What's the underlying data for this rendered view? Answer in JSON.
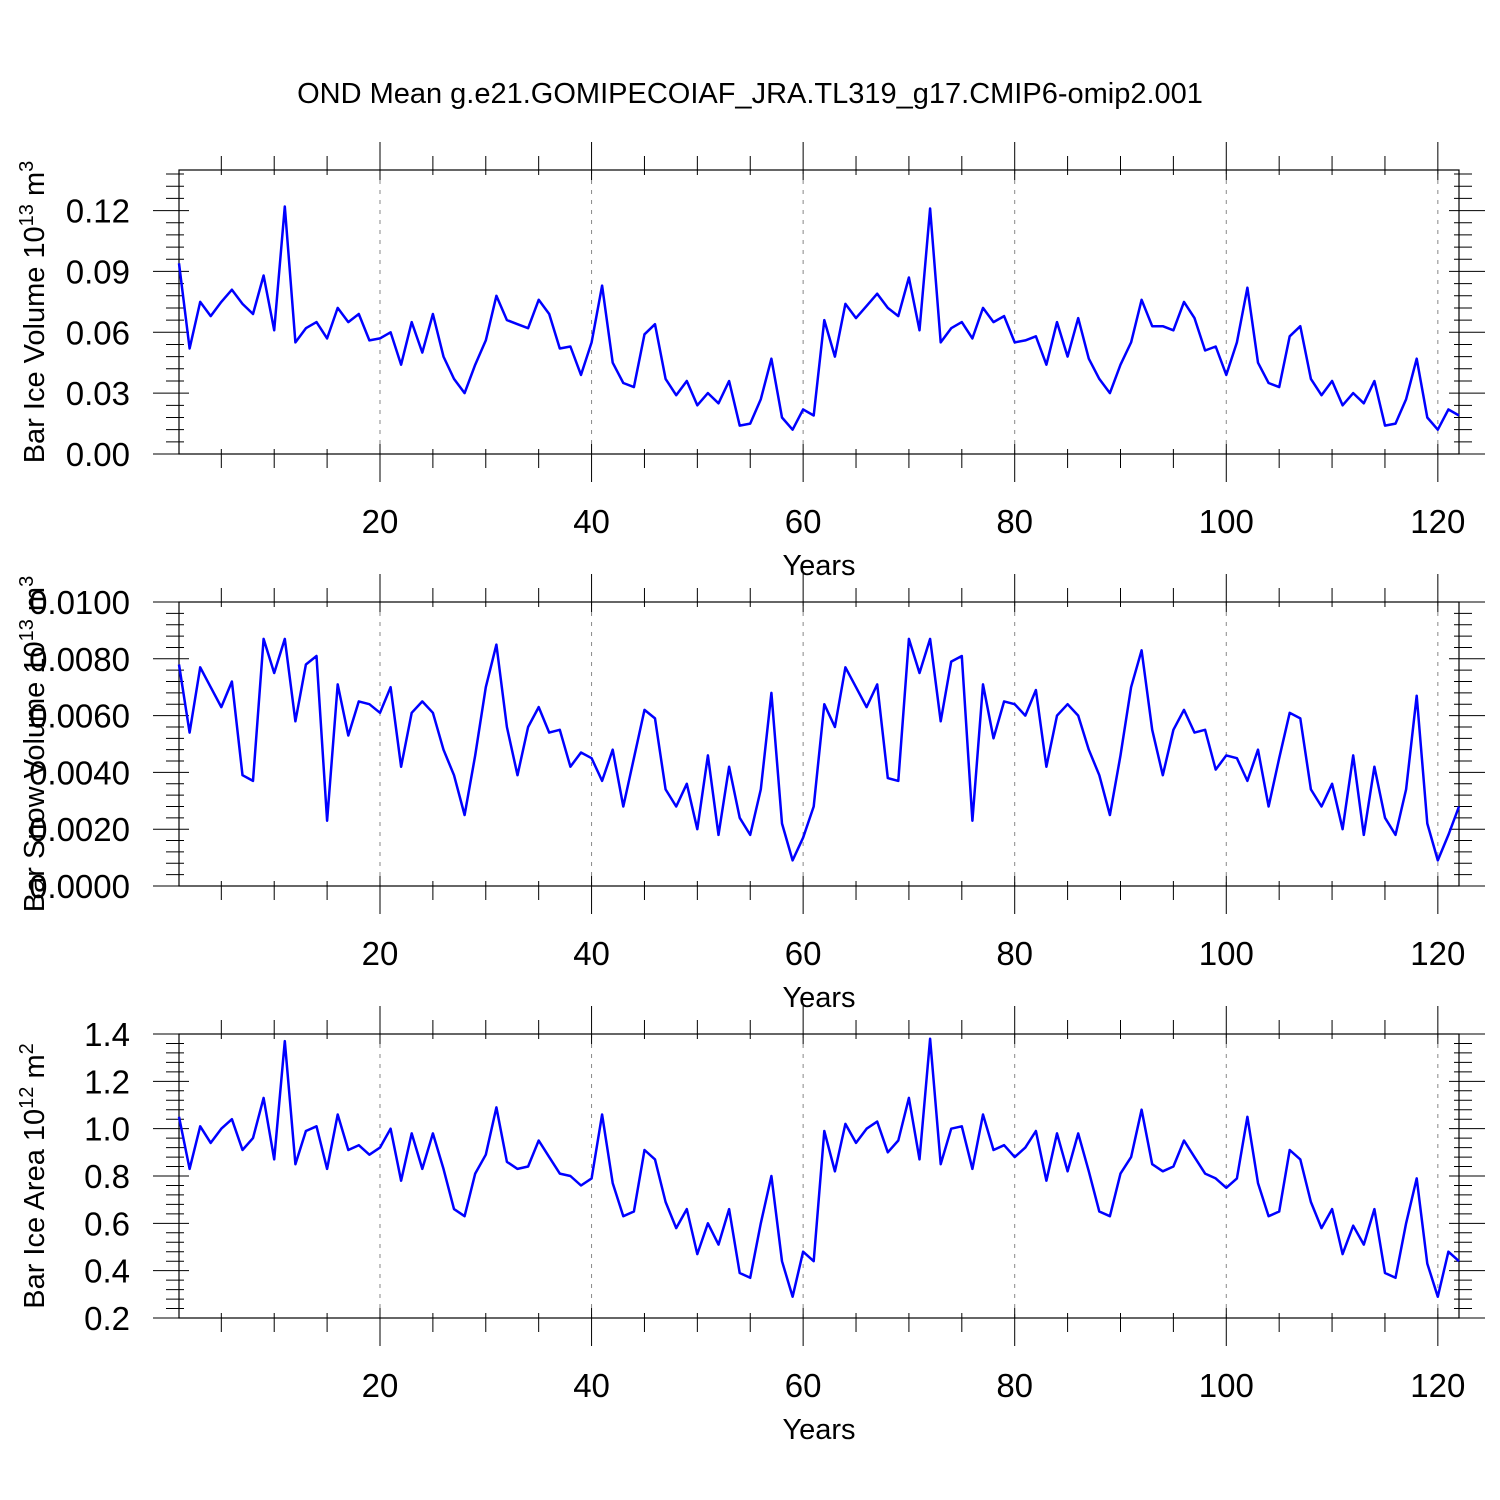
{
  "title": "OND Mean g.e21.GOMIPECOIAF_JRA.TL319_g17.CMIP6-omip2.001",
  "chart_data": [
    {
      "type": "line",
      "ylabel": "Bar Ice Volume",
      "ylabel_unit": "10",
      "ylabel_exp": "13",
      "ylabel_unit2": " m",
      "ylabel_exp2": "3",
      "xlabel": "Years",
      "xlim": [
        1,
        122
      ],
      "ylim": [
        0,
        0.14
      ],
      "xticks": [
        20,
        40,
        60,
        80,
        100,
        120
      ],
      "yticks": [
        "0.00",
        "0.03",
        "0.06",
        "0.09",
        "0.12"
      ],
      "grid_x": true,
      "line_color": "#0000ff",
      "x": [
        1,
        2,
        3,
        4,
        5,
        6,
        7,
        8,
        9,
        10,
        11,
        12,
        13,
        14,
        15,
        16,
        17,
        18,
        19,
        20,
        21,
        22,
        23,
        24,
        25,
        26,
        27,
        28,
        29,
        30,
        31,
        32,
        33,
        34,
        35,
        36,
        37,
        38,
        39,
        40,
        41,
        42,
        43,
        44,
        45,
        46,
        47,
        48,
        49,
        50,
        51,
        52,
        53,
        54,
        55,
        56,
        57,
        58,
        59,
        60,
        61,
        62,
        63,
        64,
        65,
        66,
        67,
        68,
        69,
        70,
        71,
        72,
        73,
        74,
        75,
        76,
        77,
        78,
        79,
        80,
        81,
        82,
        83,
        84,
        85,
        86,
        87,
        88,
        89,
        90,
        91,
        92,
        93,
        94,
        95,
        96,
        97,
        98,
        99,
        100,
        101,
        102,
        103,
        104,
        105,
        106,
        107,
        108,
        109,
        110,
        111,
        112,
        113,
        114,
        115,
        116,
        117,
        118,
        119,
        120,
        121,
        122
      ],
      "values": [
        0.094,
        0.052,
        0.075,
        0.068,
        0.075,
        0.081,
        0.074,
        0.069,
        0.088,
        0.061,
        0.122,
        0.055,
        0.062,
        0.065,
        0.057,
        0.072,
        0.065,
        0.069,
        0.056,
        0.057,
        0.06,
        0.044,
        0.065,
        0.05,
        0.069,
        0.048,
        0.037,
        0.03,
        0.044,
        0.056,
        0.078,
        0.066,
        0.064,
        0.062,
        0.076,
        0.069,
        0.052,
        0.053,
        0.039,
        0.055,
        0.083,
        0.045,
        0.035,
        0.033,
        0.059,
        0.064,
        0.037,
        0.029,
        0.036,
        0.024,
        0.03,
        0.025,
        0.036,
        0.014,
        0.015,
        0.027,
        0.047,
        0.018,
        0.012,
        0.022,
        0.019,
        0.066,
        0.048,
        0.074,
        0.067,
        0.073,
        0.079,
        0.072,
        0.068,
        0.087,
        0.061,
        0.121,
        0.055,
        0.062,
        0.065,
        0.057,
        0.072,
        0.065,
        0.068,
        0.055,
        0.056,
        0.058,
        0.044,
        0.065,
        0.048,
        0.067,
        0.047,
        0.037,
        0.03,
        0.044,
        0.055,
        0.076,
        0.063,
        0.063,
        0.061,
        0.075,
        0.067,
        0.051,
        0.053,
        0.039,
        0.055,
        0.082,
        0.045,
        0.035,
        0.033,
        0.058,
        0.063,
        0.037,
        0.029,
        0.036,
        0.024,
        0.03,
        0.025,
        0.036,
        0.014,
        0.015,
        0.027,
        0.047,
        0.018,
        0.012,
        0.022,
        0.019
      ]
    },
    {
      "type": "line",
      "ylabel": "Bar Snow Volume",
      "ylabel_unit": "10",
      "ylabel_exp": "13",
      "ylabel_unit2": " m",
      "ylabel_exp2": "3",
      "xlabel": "Years",
      "xlim": [
        1,
        122
      ],
      "ylim": [
        0,
        0.01
      ],
      "xticks": [
        20,
        40,
        60,
        80,
        100,
        120
      ],
      "yticks": [
        "0.0000",
        "0.0020",
        "0.0040",
        "0.0060",
        "0.0080",
        "0.0100"
      ],
      "grid_x": true,
      "line_color": "#0000ff",
      "x": [
        1,
        2,
        3,
        4,
        5,
        6,
        7,
        8,
        9,
        10,
        11,
        12,
        13,
        14,
        15,
        16,
        17,
        18,
        19,
        20,
        21,
        22,
        23,
        24,
        25,
        26,
        27,
        28,
        29,
        30,
        31,
        32,
        33,
        34,
        35,
        36,
        37,
        38,
        39,
        40,
        41,
        42,
        43,
        44,
        45,
        46,
        47,
        48,
        49,
        50,
        51,
        52,
        53,
        54,
        55,
        56,
        57,
        58,
        59,
        60,
        61,
        62,
        63,
        64,
        65,
        66,
        67,
        68,
        69,
        70,
        71,
        72,
        73,
        74,
        75,
        76,
        77,
        78,
        79,
        80,
        81,
        82,
        83,
        84,
        85,
        86,
        87,
        88,
        89,
        90,
        91,
        92,
        93,
        94,
        95,
        96,
        97,
        98,
        99,
        100,
        101,
        102,
        103,
        104,
        105,
        106,
        107,
        108,
        109,
        110,
        111,
        112,
        113,
        114,
        115,
        116,
        117,
        118,
        119,
        120,
        121,
        122
      ],
      "values": [
        0.0078,
        0.0054,
        0.0077,
        0.007,
        0.0063,
        0.0072,
        0.0039,
        0.0037,
        0.0087,
        0.0075,
        0.0087,
        0.0058,
        0.0078,
        0.0081,
        0.0023,
        0.0071,
        0.0053,
        0.0065,
        0.0064,
        0.0061,
        0.007,
        0.0042,
        0.0061,
        0.0065,
        0.0061,
        0.0048,
        0.0039,
        0.0025,
        0.0046,
        0.007,
        0.0085,
        0.0056,
        0.0039,
        0.0056,
        0.0063,
        0.0054,
        0.0055,
        0.0042,
        0.0047,
        0.0045,
        0.0037,
        0.0048,
        0.0028,
        0.0045,
        0.0062,
        0.0059,
        0.0034,
        0.0028,
        0.0036,
        0.002,
        0.0046,
        0.0018,
        0.0042,
        0.0024,
        0.0018,
        0.0034,
        0.0068,
        0.0022,
        0.0009,
        0.0017,
        0.0028,
        0.0064,
        0.0056,
        0.0077,
        0.007,
        0.0063,
        0.0071,
        0.0038,
        0.0037,
        0.0087,
        0.0075,
        0.0087,
        0.0058,
        0.0079,
        0.0081,
        0.0023,
        0.0071,
        0.0052,
        0.0065,
        0.0064,
        0.006,
        0.0069,
        0.0042,
        0.006,
        0.0064,
        0.006,
        0.0048,
        0.0039,
        0.0025,
        0.0046,
        0.007,
        0.0083,
        0.0055,
        0.0039,
        0.0055,
        0.0062,
        0.0054,
        0.0055,
        0.0041,
        0.0046,
        0.0045,
        0.0037,
        0.0048,
        0.0028,
        0.0045,
        0.0061,
        0.0059,
        0.0034,
        0.0028,
        0.0036,
        0.002,
        0.0046,
        0.0018,
        0.0042,
        0.0024,
        0.0018,
        0.0034,
        0.0067,
        0.0022,
        0.0009,
        0.0018,
        0.0028
      ]
    },
    {
      "type": "line",
      "ylabel": "Bar Ice Area",
      "ylabel_unit": "10",
      "ylabel_exp": "12",
      "ylabel_unit2": " m",
      "ylabel_exp2": "2",
      "xlabel": "Years",
      "xlim": [
        1,
        122
      ],
      "ylim": [
        0.2,
        1.4
      ],
      "xticks": [
        20,
        40,
        60,
        80,
        100,
        120
      ],
      "yticks": [
        "0.2",
        "0.4",
        "0.6",
        "0.8",
        "1.0",
        "1.2",
        "1.4"
      ],
      "grid_x": true,
      "line_color": "#0000ff",
      "x": [
        1,
        2,
        3,
        4,
        5,
        6,
        7,
        8,
        9,
        10,
        11,
        12,
        13,
        14,
        15,
        16,
        17,
        18,
        19,
        20,
        21,
        22,
        23,
        24,
        25,
        26,
        27,
        28,
        29,
        30,
        31,
        32,
        33,
        34,
        35,
        36,
        37,
        38,
        39,
        40,
        41,
        42,
        43,
        44,
        45,
        46,
        47,
        48,
        49,
        50,
        51,
        52,
        53,
        54,
        55,
        56,
        57,
        58,
        59,
        60,
        61,
        62,
        63,
        64,
        65,
        66,
        67,
        68,
        69,
        70,
        71,
        72,
        73,
        74,
        75,
        76,
        77,
        78,
        79,
        80,
        81,
        82,
        83,
        84,
        85,
        86,
        87,
        88,
        89,
        90,
        91,
        92,
        93,
        94,
        95,
        96,
        97,
        98,
        99,
        100,
        101,
        102,
        103,
        104,
        105,
        106,
        107,
        108,
        109,
        110,
        111,
        112,
        113,
        114,
        115,
        116,
        117,
        118,
        119,
        120,
        121,
        122
      ],
      "values": [
        1.05,
        0.83,
        1.01,
        0.94,
        1.0,
        1.04,
        0.91,
        0.96,
        1.13,
        0.87,
        1.37,
        0.85,
        0.99,
        1.01,
        0.83,
        1.06,
        0.91,
        0.93,
        0.89,
        0.92,
        1.0,
        0.78,
        0.98,
        0.83,
        0.98,
        0.83,
        0.66,
        0.63,
        0.81,
        0.89,
        1.09,
        0.86,
        0.83,
        0.84,
        0.95,
        0.88,
        0.81,
        0.8,
        0.76,
        0.79,
        1.06,
        0.77,
        0.63,
        0.65,
        0.91,
        0.87,
        0.69,
        0.58,
        0.66,
        0.47,
        0.6,
        0.51,
        0.66,
        0.39,
        0.37,
        0.6,
        0.8,
        0.44,
        0.29,
        0.48,
        0.44,
        0.99,
        0.82,
        1.02,
        0.94,
        1.0,
        1.03,
        0.9,
        0.95,
        1.13,
        0.87,
        1.38,
        0.85,
        1.0,
        1.01,
        0.83,
        1.06,
        0.91,
        0.93,
        0.88,
        0.92,
        0.99,
        0.78,
        0.98,
        0.82,
        0.98,
        0.82,
        0.65,
        0.63,
        0.81,
        0.88,
        1.08,
        0.85,
        0.82,
        0.84,
        0.95,
        0.88,
        0.81,
        0.79,
        0.75,
        0.79,
        1.05,
        0.77,
        0.63,
        0.65,
        0.91,
        0.87,
        0.69,
        0.58,
        0.66,
        0.47,
        0.59,
        0.51,
        0.66,
        0.39,
        0.37,
        0.6,
        0.79,
        0.43,
        0.29,
        0.48,
        0.44
      ]
    }
  ]
}
